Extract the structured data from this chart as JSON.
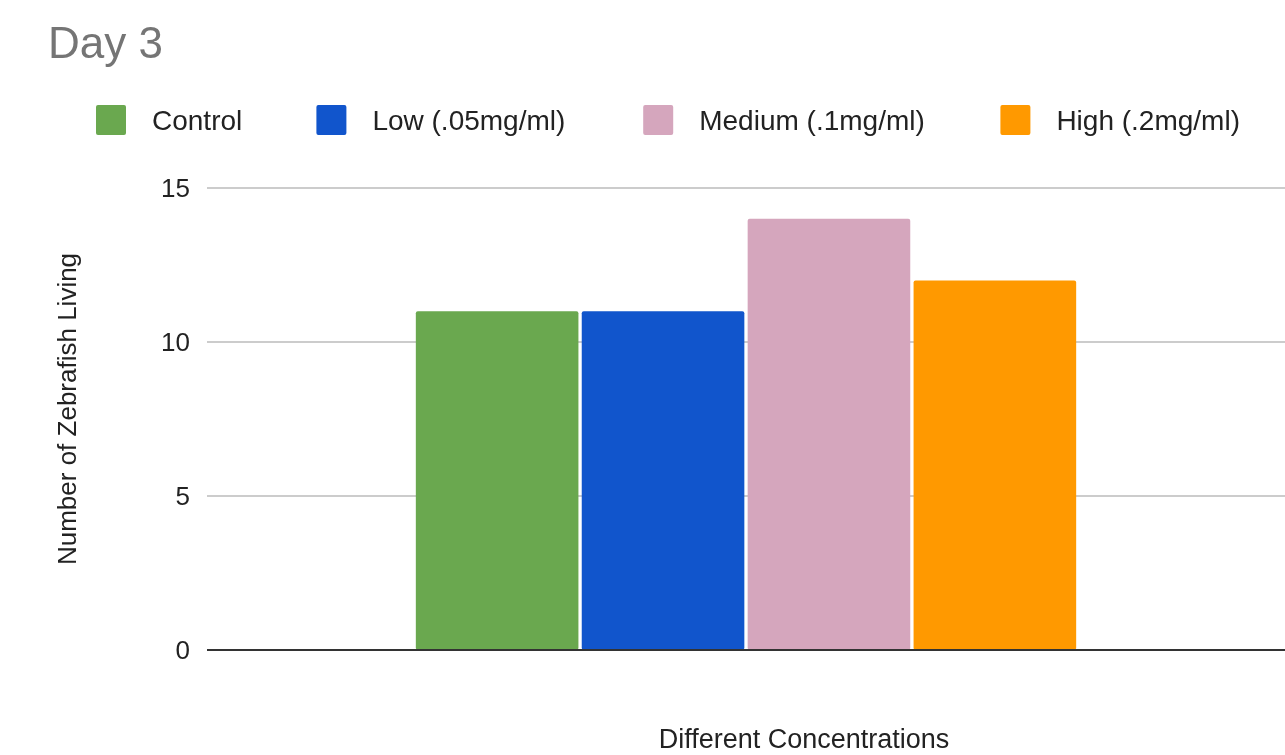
{
  "chart_data": {
    "type": "bar",
    "title": "Day 3",
    "xlabel": "Different Concentrations",
    "ylabel": "Number of Zebrafish Living",
    "categories": [
      null
    ],
    "series": [
      {
        "name": "Control",
        "color": "#6aa84f",
        "values": [
          11
        ]
      },
      {
        "name": "Low (.05mg/ml)",
        "color": "#1155cc",
        "values": [
          11
        ]
      },
      {
        "name": "Medium (.1mg/ml)",
        "color": "#d5a6bd",
        "values": [
          14
        ]
      },
      {
        "name": "High (.2mg/ml)",
        "color": "#ff9900",
        "values": [
          12
        ]
      }
    ],
    "ylim": [
      0,
      15
    ],
    "yticks": [
      0,
      5,
      10,
      15
    ],
    "grid": true,
    "legend": "top"
  }
}
